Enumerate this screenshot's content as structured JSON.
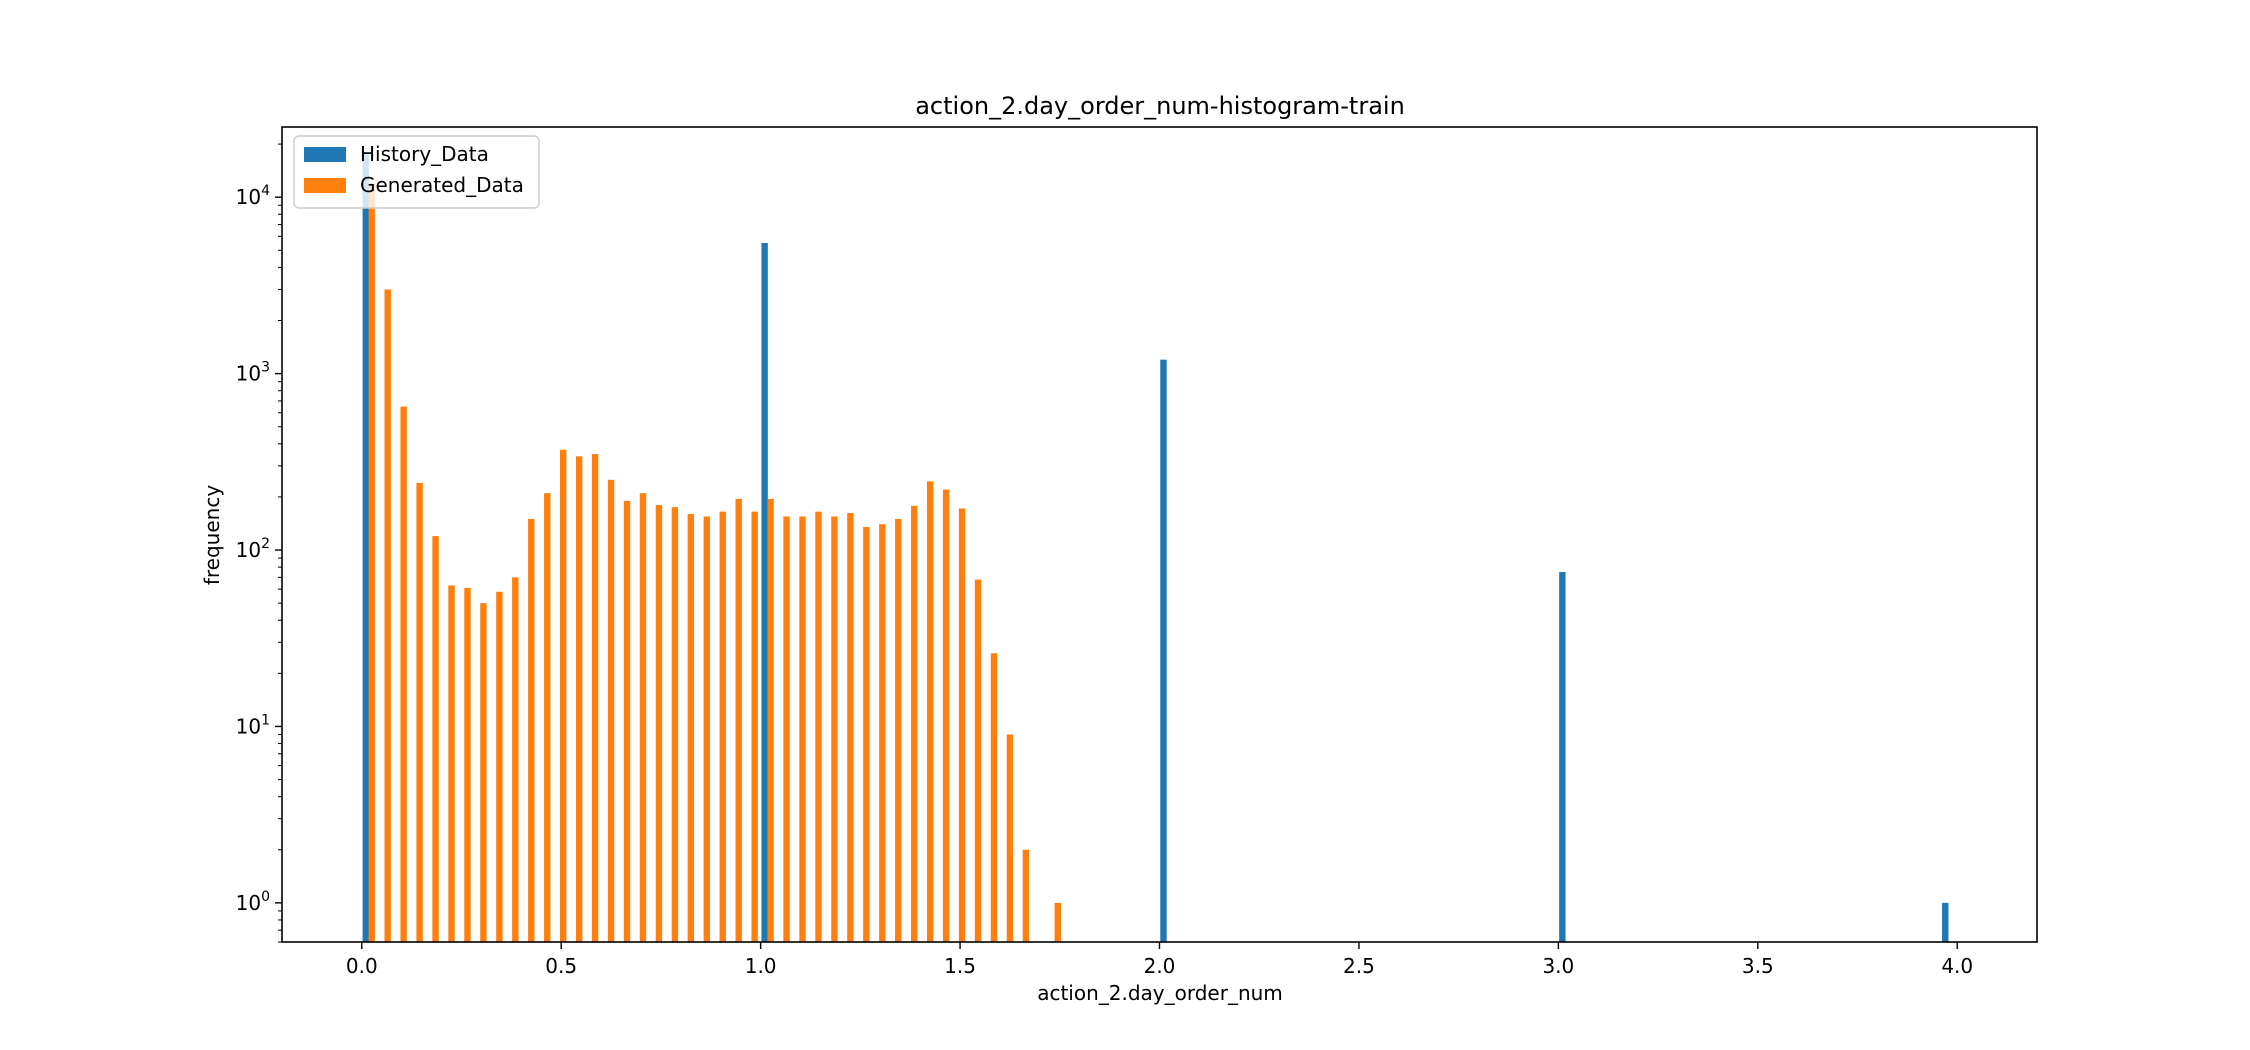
{
  "chart_data": {
    "type": "bar",
    "title": "action_2.day_order_num-histogram-train",
    "xlabel": "action_2.day_order_num",
    "ylabel": "frequency",
    "yscale": "log",
    "xlim": [
      -0.2,
      4.2
    ],
    "ylim": [
      0.6,
      25000
    ],
    "x_ticks": [
      0.0,
      0.5,
      1.0,
      1.5,
      2.0,
      2.5,
      3.0,
      3.5,
      4.0
    ],
    "x_tick_labels": [
      "0.0",
      "0.5",
      "1.0",
      "1.5",
      "2.0",
      "2.5",
      "3.0",
      "3.5",
      "4.0"
    ],
    "y_ticks": [
      1,
      10,
      100,
      1000,
      10000
    ],
    "y_tick_labels": [
      {
        "base": "10",
        "exp": "0"
      },
      {
        "base": "10",
        "exp": "1"
      },
      {
        "base": "10",
        "exp": "2"
      },
      {
        "base": "10",
        "exp": "3"
      },
      {
        "base": "10",
        "exp": "4"
      }
    ],
    "grid": false,
    "legend_position": "top-left",
    "series": [
      {
        "name": "History_Data",
        "color": "#1f77b4",
        "x": [
          0.01,
          1.01,
          2.01,
          3.01,
          3.97
        ],
        "values": [
          18000,
          5500,
          1200,
          75,
          1
        ]
      },
      {
        "name": "Generated_Data",
        "color": "#ff7f0e",
        "x": [
          0.025,
          0.065,
          0.105,
          0.145,
          0.185,
          0.225,
          0.265,
          0.305,
          0.345,
          0.385,
          0.425,
          0.465,
          0.505,
          0.545,
          0.585,
          0.625,
          0.665,
          0.705,
          0.745,
          0.785,
          0.825,
          0.865,
          0.905,
          0.945,
          0.985,
          1.025,
          1.065,
          1.105,
          1.145,
          1.185,
          1.225,
          1.265,
          1.305,
          1.345,
          1.385,
          1.425,
          1.465,
          1.505,
          1.545,
          1.585,
          1.625,
          1.665,
          1.745
        ],
        "values": [
          12000,
          3000,
          650,
          240,
          120,
          63,
          61,
          50,
          58,
          70,
          150,
          210,
          370,
          340,
          350,
          250,
          190,
          210,
          180,
          175,
          160,
          155,
          165,
          195,
          165,
          195,
          155,
          155,
          165,
          155,
          162,
          135,
          140,
          150,
          178,
          245,
          220,
          172,
          68,
          26,
          9,
          2,
          1
        ]
      }
    ]
  }
}
